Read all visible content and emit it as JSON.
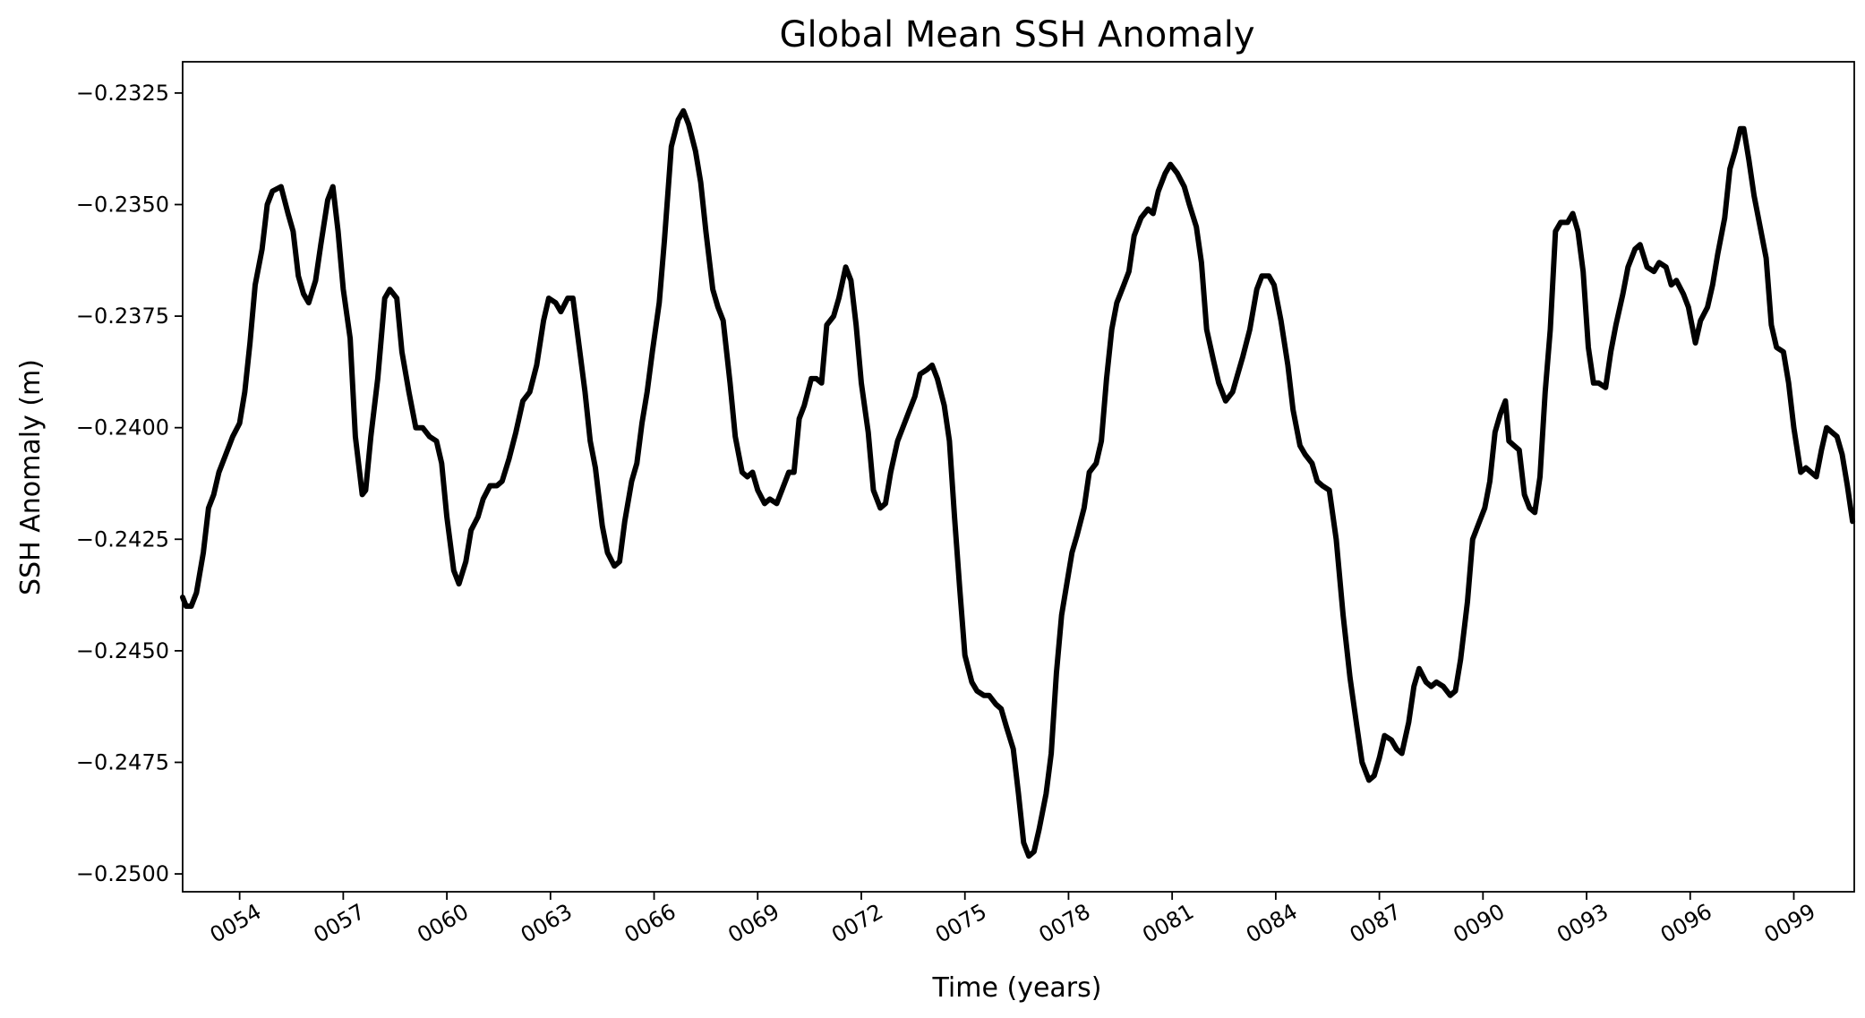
{
  "chart_data": {
    "type": "line",
    "title": "Global Mean SSH Anomaly",
    "xlabel": "Time (years)",
    "ylabel": "SSH Anomaly (m)",
    "xlim": [
      52.35,
      100.75
    ],
    "ylim": [
      -0.2504,
      -0.2318
    ],
    "x_ticks": [
      54,
      57,
      60,
      63,
      66,
      69,
      72,
      75,
      78,
      81,
      84,
      87,
      90,
      93,
      96,
      99
    ],
    "x_tick_labels": [
      "0054",
      "0057",
      "0060",
      "0063",
      "0066",
      "0069",
      "0072",
      "0075",
      "0078",
      "0081",
      "0084",
      "0087",
      "0090",
      "0093",
      "0096",
      "0099"
    ],
    "y_ticks": [
      -0.2325,
      -0.235,
      -0.2375,
      -0.24,
      -0.2425,
      -0.245,
      -0.2475,
      -0.25
    ],
    "y_tick_labels": [
      "−0.2325",
      "−0.2350",
      "−0.2375",
      "−0.2400",
      "−0.2425",
      "−0.2450",
      "−0.2475",
      "−0.2500"
    ],
    "grid": false,
    "series": [
      {
        "name": "SSH Anomaly",
        "color": "#000000",
        "points": [
          [
            52.35,
            -0.2438
          ],
          [
            52.45,
            -0.244
          ],
          [
            52.6,
            -0.244
          ],
          [
            52.75,
            -0.2437
          ],
          [
            52.95,
            -0.2428
          ],
          [
            53.1,
            -0.2418
          ],
          [
            53.25,
            -0.2415
          ],
          [
            53.4,
            -0.241
          ],
          [
            53.6,
            -0.2406
          ],
          [
            53.8,
            -0.2402
          ],
          [
            54.0,
            -0.2399
          ],
          [
            54.15,
            -0.2392
          ],
          [
            54.3,
            -0.2381
          ],
          [
            54.45,
            -0.2368
          ],
          [
            54.65,
            -0.236
          ],
          [
            54.8,
            -0.235
          ],
          [
            54.95,
            -0.2347
          ],
          [
            55.2,
            -0.2346
          ],
          [
            55.4,
            -0.2352
          ],
          [
            55.55,
            -0.2356
          ],
          [
            55.7,
            -0.2366
          ],
          [
            55.85,
            -0.237
          ],
          [
            56.0,
            -0.2372
          ],
          [
            56.2,
            -0.2367
          ],
          [
            56.35,
            -0.2359
          ],
          [
            56.55,
            -0.2349
          ],
          [
            56.7,
            -0.2346
          ],
          [
            56.85,
            -0.2356
          ],
          [
            57.0,
            -0.2369
          ],
          [
            57.2,
            -0.238
          ],
          [
            57.35,
            -0.2402
          ],
          [
            57.55,
            -0.2415
          ],
          [
            57.65,
            -0.2414
          ],
          [
            57.8,
            -0.2402
          ],
          [
            58.0,
            -0.2389
          ],
          [
            58.2,
            -0.2371
          ],
          [
            58.35,
            -0.2369
          ],
          [
            58.55,
            -0.2371
          ],
          [
            58.7,
            -0.2383
          ],
          [
            58.9,
            -0.2392
          ],
          [
            59.1,
            -0.24
          ],
          [
            59.3,
            -0.24
          ],
          [
            59.5,
            -0.2402
          ],
          [
            59.7,
            -0.2403
          ],
          [
            59.85,
            -0.2408
          ],
          [
            60.0,
            -0.242
          ],
          [
            60.2,
            -0.2432
          ],
          [
            60.35,
            -0.2435
          ],
          [
            60.55,
            -0.243
          ],
          [
            60.7,
            -0.2423
          ],
          [
            60.9,
            -0.242
          ],
          [
            61.05,
            -0.2416
          ],
          [
            61.25,
            -0.2413
          ],
          [
            61.45,
            -0.2413
          ],
          [
            61.6,
            -0.2412
          ],
          [
            61.8,
            -0.2407
          ],
          [
            62.0,
            -0.2401
          ],
          [
            62.2,
            -0.2394
          ],
          [
            62.4,
            -0.2392
          ],
          [
            62.6,
            -0.2386
          ],
          [
            62.8,
            -0.2376
          ],
          [
            62.95,
            -0.2371
          ],
          [
            63.15,
            -0.2372
          ],
          [
            63.3,
            -0.2374
          ],
          [
            63.5,
            -0.2371
          ],
          [
            63.65,
            -0.2371
          ],
          [
            63.8,
            -0.238
          ],
          [
            64.0,
            -0.2392
          ],
          [
            64.15,
            -0.2403
          ],
          [
            64.3,
            -0.2409
          ],
          [
            64.5,
            -0.2422
          ],
          [
            64.65,
            -0.2428
          ],
          [
            64.85,
            -0.2431
          ],
          [
            65.0,
            -0.243
          ],
          [
            65.15,
            -0.2421
          ],
          [
            65.35,
            -0.2412
          ],
          [
            65.5,
            -0.2408
          ],
          [
            65.65,
            -0.2399
          ],
          [
            65.8,
            -0.2392
          ],
          [
            65.95,
            -0.2383
          ],
          [
            66.15,
            -0.2372
          ],
          [
            66.3,
            -0.2358
          ],
          [
            66.5,
            -0.2337
          ],
          [
            66.7,
            -0.2331
          ],
          [
            66.85,
            -0.2329
          ],
          [
            67.0,
            -0.2332
          ],
          [
            67.2,
            -0.2338
          ],
          [
            67.35,
            -0.2345
          ],
          [
            67.5,
            -0.2356
          ],
          [
            67.7,
            -0.2369
          ],
          [
            67.85,
            -0.2373
          ],
          [
            68.0,
            -0.2376
          ],
          [
            68.2,
            -0.239
          ],
          [
            68.35,
            -0.2402
          ],
          [
            68.55,
            -0.241
          ],
          [
            68.7,
            -0.2411
          ],
          [
            68.85,
            -0.241
          ],
          [
            69.0,
            -0.2414
          ],
          [
            69.2,
            -0.2417
          ],
          [
            69.35,
            -0.2416
          ],
          [
            69.55,
            -0.2417
          ],
          [
            69.7,
            -0.2414
          ],
          [
            69.9,
            -0.241
          ],
          [
            70.05,
            -0.241
          ],
          [
            70.2,
            -0.2398
          ],
          [
            70.35,
            -0.2395
          ],
          [
            70.55,
            -0.2389
          ],
          [
            70.7,
            -0.2389
          ],
          [
            70.85,
            -0.239
          ],
          [
            71.0,
            -0.2377
          ],
          [
            71.2,
            -0.2375
          ],
          [
            71.35,
            -0.2371
          ],
          [
            71.55,
            -0.2364
          ],
          [
            71.7,
            -0.2367
          ],
          [
            71.85,
            -0.2377
          ],
          [
            72.0,
            -0.239
          ],
          [
            72.2,
            -0.2401
          ],
          [
            72.35,
            -0.2414
          ],
          [
            72.55,
            -0.2418
          ],
          [
            72.7,
            -0.2417
          ],
          [
            72.85,
            -0.241
          ],
          [
            73.05,
            -0.2403
          ],
          [
            73.2,
            -0.24
          ],
          [
            73.4,
            -0.2396
          ],
          [
            73.55,
            -0.2393
          ],
          [
            73.7,
            -0.2388
          ],
          [
            73.9,
            -0.2387
          ],
          [
            74.05,
            -0.2386
          ],
          [
            74.2,
            -0.2389
          ],
          [
            74.4,
            -0.2395
          ],
          [
            74.55,
            -0.2403
          ],
          [
            74.7,
            -0.242
          ],
          [
            74.85,
            -0.2436
          ],
          [
            75.0,
            -0.2451
          ],
          [
            75.2,
            -0.2457
          ],
          [
            75.35,
            -0.2459
          ],
          [
            75.55,
            -0.246
          ],
          [
            75.7,
            -0.246
          ],
          [
            75.9,
            -0.2462
          ],
          [
            76.05,
            -0.2463
          ],
          [
            76.2,
            -0.2467
          ],
          [
            76.4,
            -0.2472
          ],
          [
            76.55,
            -0.2482
          ],
          [
            76.7,
            -0.2493
          ],
          [
            76.85,
            -0.2496
          ],
          [
            77.0,
            -0.2495
          ],
          [
            77.15,
            -0.249
          ],
          [
            77.35,
            -0.2482
          ],
          [
            77.5,
            -0.2473
          ],
          [
            77.65,
            -0.2455
          ],
          [
            77.8,
            -0.2442
          ],
          [
            77.95,
            -0.2435
          ],
          [
            78.1,
            -0.2428
          ],
          [
            78.25,
            -0.2424
          ],
          [
            78.45,
            -0.2418
          ],
          [
            78.6,
            -0.241
          ],
          [
            78.8,
            -0.2408
          ],
          [
            78.95,
            -0.2403
          ],
          [
            79.1,
            -0.2389
          ],
          [
            79.25,
            -0.2378
          ],
          [
            79.4,
            -0.2372
          ],
          [
            79.6,
            -0.2368
          ],
          [
            79.75,
            -0.2365
          ],
          [
            79.9,
            -0.2357
          ],
          [
            80.1,
            -0.2353
          ],
          [
            80.3,
            -0.2351
          ],
          [
            80.45,
            -0.2352
          ],
          [
            80.6,
            -0.2347
          ],
          [
            80.8,
            -0.2343
          ],
          [
            80.95,
            -0.2341
          ],
          [
            81.15,
            -0.2343
          ],
          [
            81.35,
            -0.2346
          ],
          [
            81.5,
            -0.235
          ],
          [
            81.7,
            -0.2355
          ],
          [
            81.85,
            -0.2363
          ],
          [
            82.0,
            -0.2378
          ],
          [
            82.2,
            -0.2385
          ],
          [
            82.35,
            -0.239
          ],
          [
            82.55,
            -0.2394
          ],
          [
            82.75,
            -0.2392
          ],
          [
            82.9,
            -0.2388
          ],
          [
            83.05,
            -0.2384
          ],
          [
            83.25,
            -0.2378
          ],
          [
            83.45,
            -0.2369
          ],
          [
            83.6,
            -0.2366
          ],
          [
            83.8,
            -0.2366
          ],
          [
            83.95,
            -0.2368
          ],
          [
            84.15,
            -0.2376
          ],
          [
            84.35,
            -0.2386
          ],
          [
            84.5,
            -0.2396
          ],
          [
            84.7,
            -0.2404
          ],
          [
            84.85,
            -0.2406
          ],
          [
            85.05,
            -0.2408
          ],
          [
            85.2,
            -0.2412
          ],
          [
            85.35,
            -0.2413
          ],
          [
            85.55,
            -0.2414
          ],
          [
            85.75,
            -0.2425
          ],
          [
            85.95,
            -0.2442
          ],
          [
            86.15,
            -0.2456
          ],
          [
            86.35,
            -0.2467
          ],
          [
            86.5,
            -0.2475
          ],
          [
            86.7,
            -0.2479
          ],
          [
            86.85,
            -0.2478
          ],
          [
            87.0,
            -0.2474
          ],
          [
            87.15,
            -0.2469
          ],
          [
            87.35,
            -0.247
          ],
          [
            87.5,
            -0.2472
          ],
          [
            87.65,
            -0.2473
          ],
          [
            87.85,
            -0.2466
          ],
          [
            88.0,
            -0.2458
          ],
          [
            88.15,
            -0.2454
          ],
          [
            88.35,
            -0.2457
          ],
          [
            88.5,
            -0.2458
          ],
          [
            88.65,
            -0.2457
          ],
          [
            88.85,
            -0.2458
          ],
          [
            89.05,
            -0.246
          ],
          [
            89.2,
            -0.2459
          ],
          [
            89.35,
            -0.2452
          ],
          [
            89.55,
            -0.2439
          ],
          [
            89.7,
            -0.2425
          ],
          [
            89.9,
            -0.2421
          ],
          [
            90.05,
            -0.2418
          ],
          [
            90.2,
            -0.2412
          ],
          [
            90.35,
            -0.2401
          ],
          [
            90.5,
            -0.2397
          ],
          [
            90.65,
            -0.2394
          ],
          [
            90.75,
            -0.2403
          ],
          [
            90.9,
            -0.2404
          ],
          [
            91.05,
            -0.2405
          ],
          [
            91.2,
            -0.2415
          ],
          [
            91.35,
            -0.2418
          ],
          [
            91.5,
            -0.2419
          ],
          [
            91.65,
            -0.2411
          ],
          [
            91.8,
            -0.2392
          ],
          [
            91.95,
            -0.2378
          ],
          [
            92.1,
            -0.2356
          ],
          [
            92.25,
            -0.2354
          ],
          [
            92.45,
            -0.2354
          ],
          [
            92.6,
            -0.2352
          ],
          [
            92.75,
            -0.2356
          ],
          [
            92.9,
            -0.2365
          ],
          [
            93.05,
            -0.2382
          ],
          [
            93.2,
            -0.239
          ],
          [
            93.35,
            -0.239
          ],
          [
            93.55,
            -0.2391
          ],
          [
            93.7,
            -0.2383
          ],
          [
            93.85,
            -0.2377
          ],
          [
            94.05,
            -0.237
          ],
          [
            94.2,
            -0.2364
          ],
          [
            94.4,
            -0.236
          ],
          [
            94.55,
            -0.2359
          ],
          [
            94.75,
            -0.2364
          ],
          [
            94.95,
            -0.2365
          ],
          [
            95.1,
            -0.2363
          ],
          [
            95.3,
            -0.2364
          ],
          [
            95.45,
            -0.2368
          ],
          [
            95.6,
            -0.2367
          ],
          [
            95.8,
            -0.237
          ],
          [
            95.95,
            -0.2373
          ],
          [
            96.15,
            -0.2381
          ],
          [
            96.3,
            -0.2376
          ],
          [
            96.5,
            -0.2373
          ],
          [
            96.65,
            -0.2368
          ],
          [
            96.8,
            -0.2361
          ],
          [
            97.0,
            -0.2353
          ],
          [
            97.15,
            -0.2342
          ],
          [
            97.3,
            -0.2338
          ],
          [
            97.45,
            -0.2333
          ],
          [
            97.55,
            -0.2333
          ],
          [
            97.7,
            -0.234
          ],
          [
            97.85,
            -0.2348
          ],
          [
            98.0,
            -0.2354
          ],
          [
            98.2,
            -0.2362
          ],
          [
            98.35,
            -0.2377
          ],
          [
            98.5,
            -0.2382
          ],
          [
            98.7,
            -0.2383
          ],
          [
            98.85,
            -0.239
          ],
          [
            99.0,
            -0.24
          ],
          [
            99.2,
            -0.241
          ],
          [
            99.35,
            -0.2409
          ],
          [
            99.5,
            -0.241
          ],
          [
            99.65,
            -0.2411
          ],
          [
            99.8,
            -0.2405
          ],
          [
            99.95,
            -0.24
          ],
          [
            100.1,
            -0.2401
          ],
          [
            100.25,
            -0.2402
          ],
          [
            100.4,
            -0.2406
          ],
          [
            100.55,
            -0.2413
          ],
          [
            100.7,
            -0.2421
          ]
        ]
      }
    ]
  }
}
